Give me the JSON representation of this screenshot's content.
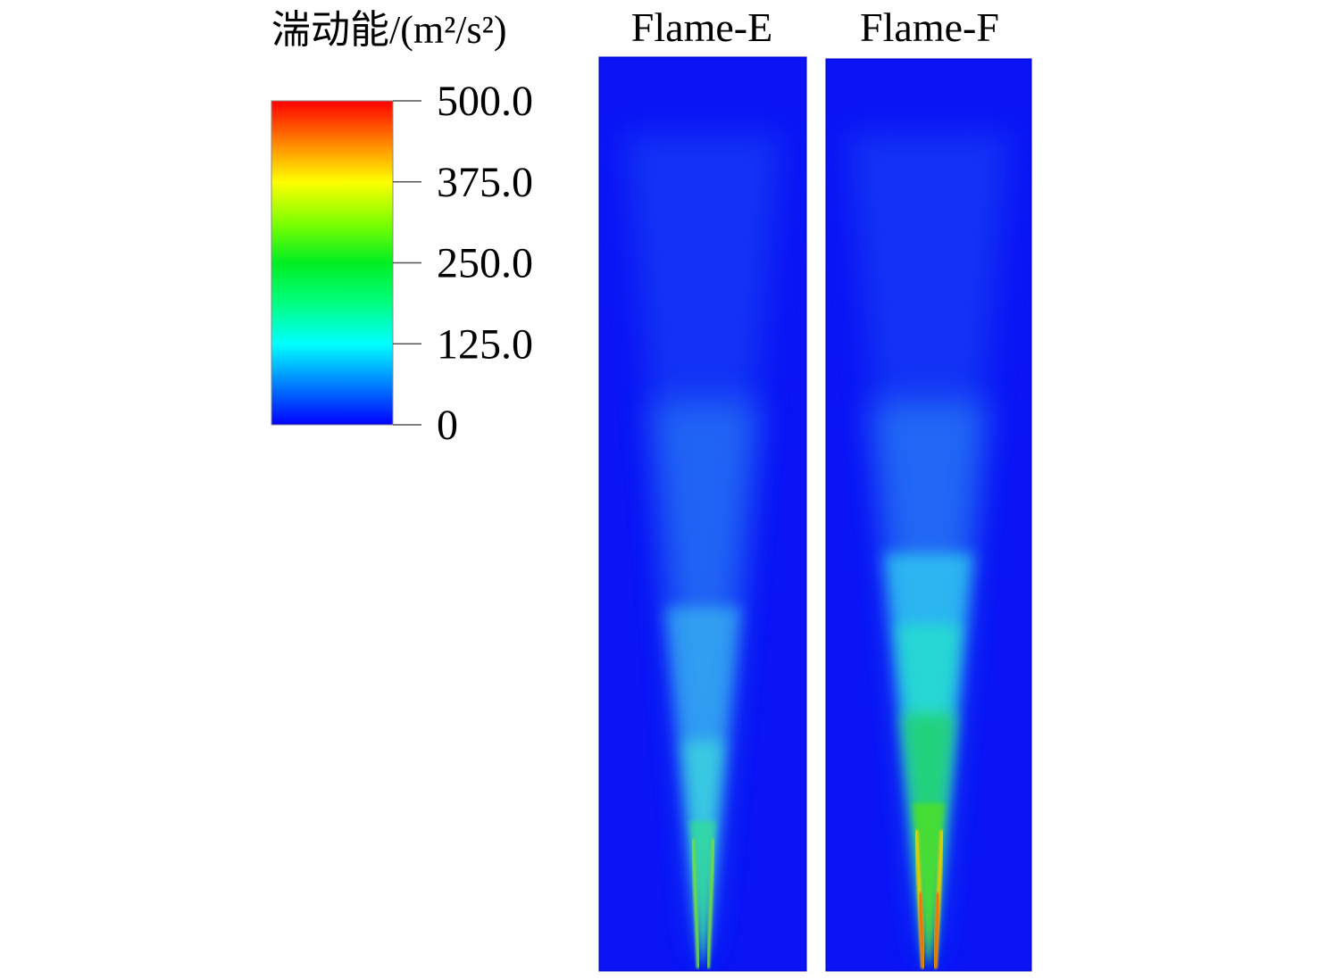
{
  "colorbar": {
    "title": "湍动能/(m²/s²)",
    "ticks": [
      {
        "value": 500,
        "label": "500.0"
      },
      {
        "value": 375,
        "label": "375.0"
      },
      {
        "value": 250,
        "label": "250.0"
      },
      {
        "value": 125,
        "label": "125.0"
      },
      0
    ]
  },
  "panels": [
    {
      "title": "Flame-E"
    },
    {
      "title": "Flame-F"
    }
  ]
}
